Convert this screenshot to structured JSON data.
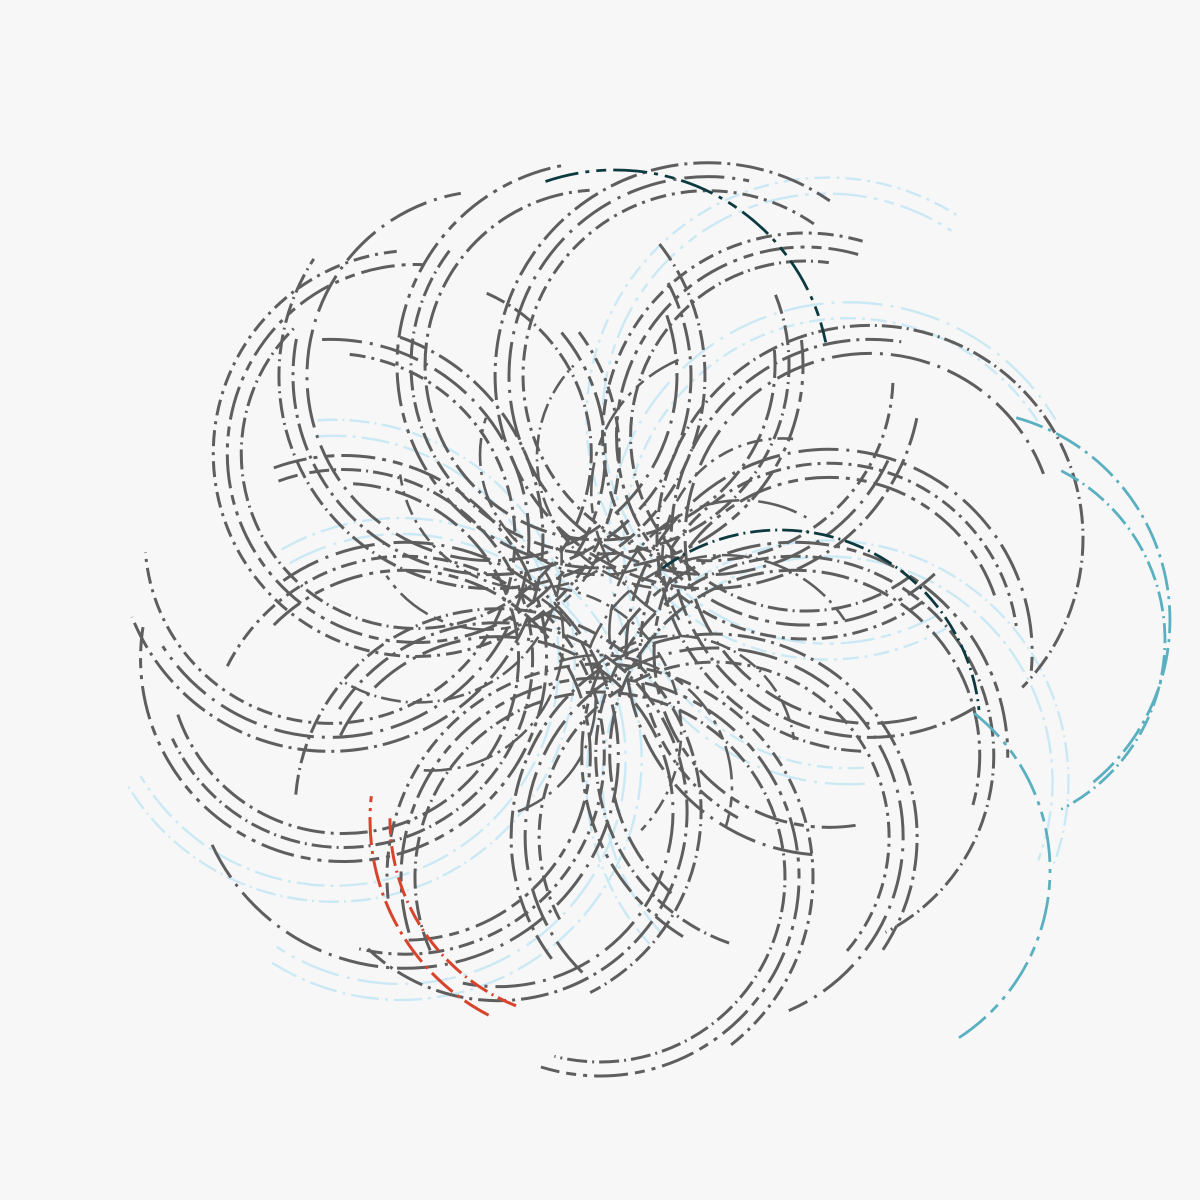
{
  "artwork": {
    "type": "generative-rosette",
    "background": "#f7f7f7",
    "palette": {
      "grey": "#5e5e5e",
      "light_blue": "#cbe9f5",
      "teal": "#5ab0c1",
      "dark_teal": "#0d3a40",
      "red": "#d8432c"
    },
    "rings": 14,
    "strands_per_ring": 3,
    "dash_style": "dash-dot",
    "accent_arcs": [
      {
        "color_key": "red",
        "count": 2
      },
      {
        "color_key": "dark_teal",
        "count": 2
      },
      {
        "color_key": "teal",
        "count": 3
      }
    ]
  }
}
